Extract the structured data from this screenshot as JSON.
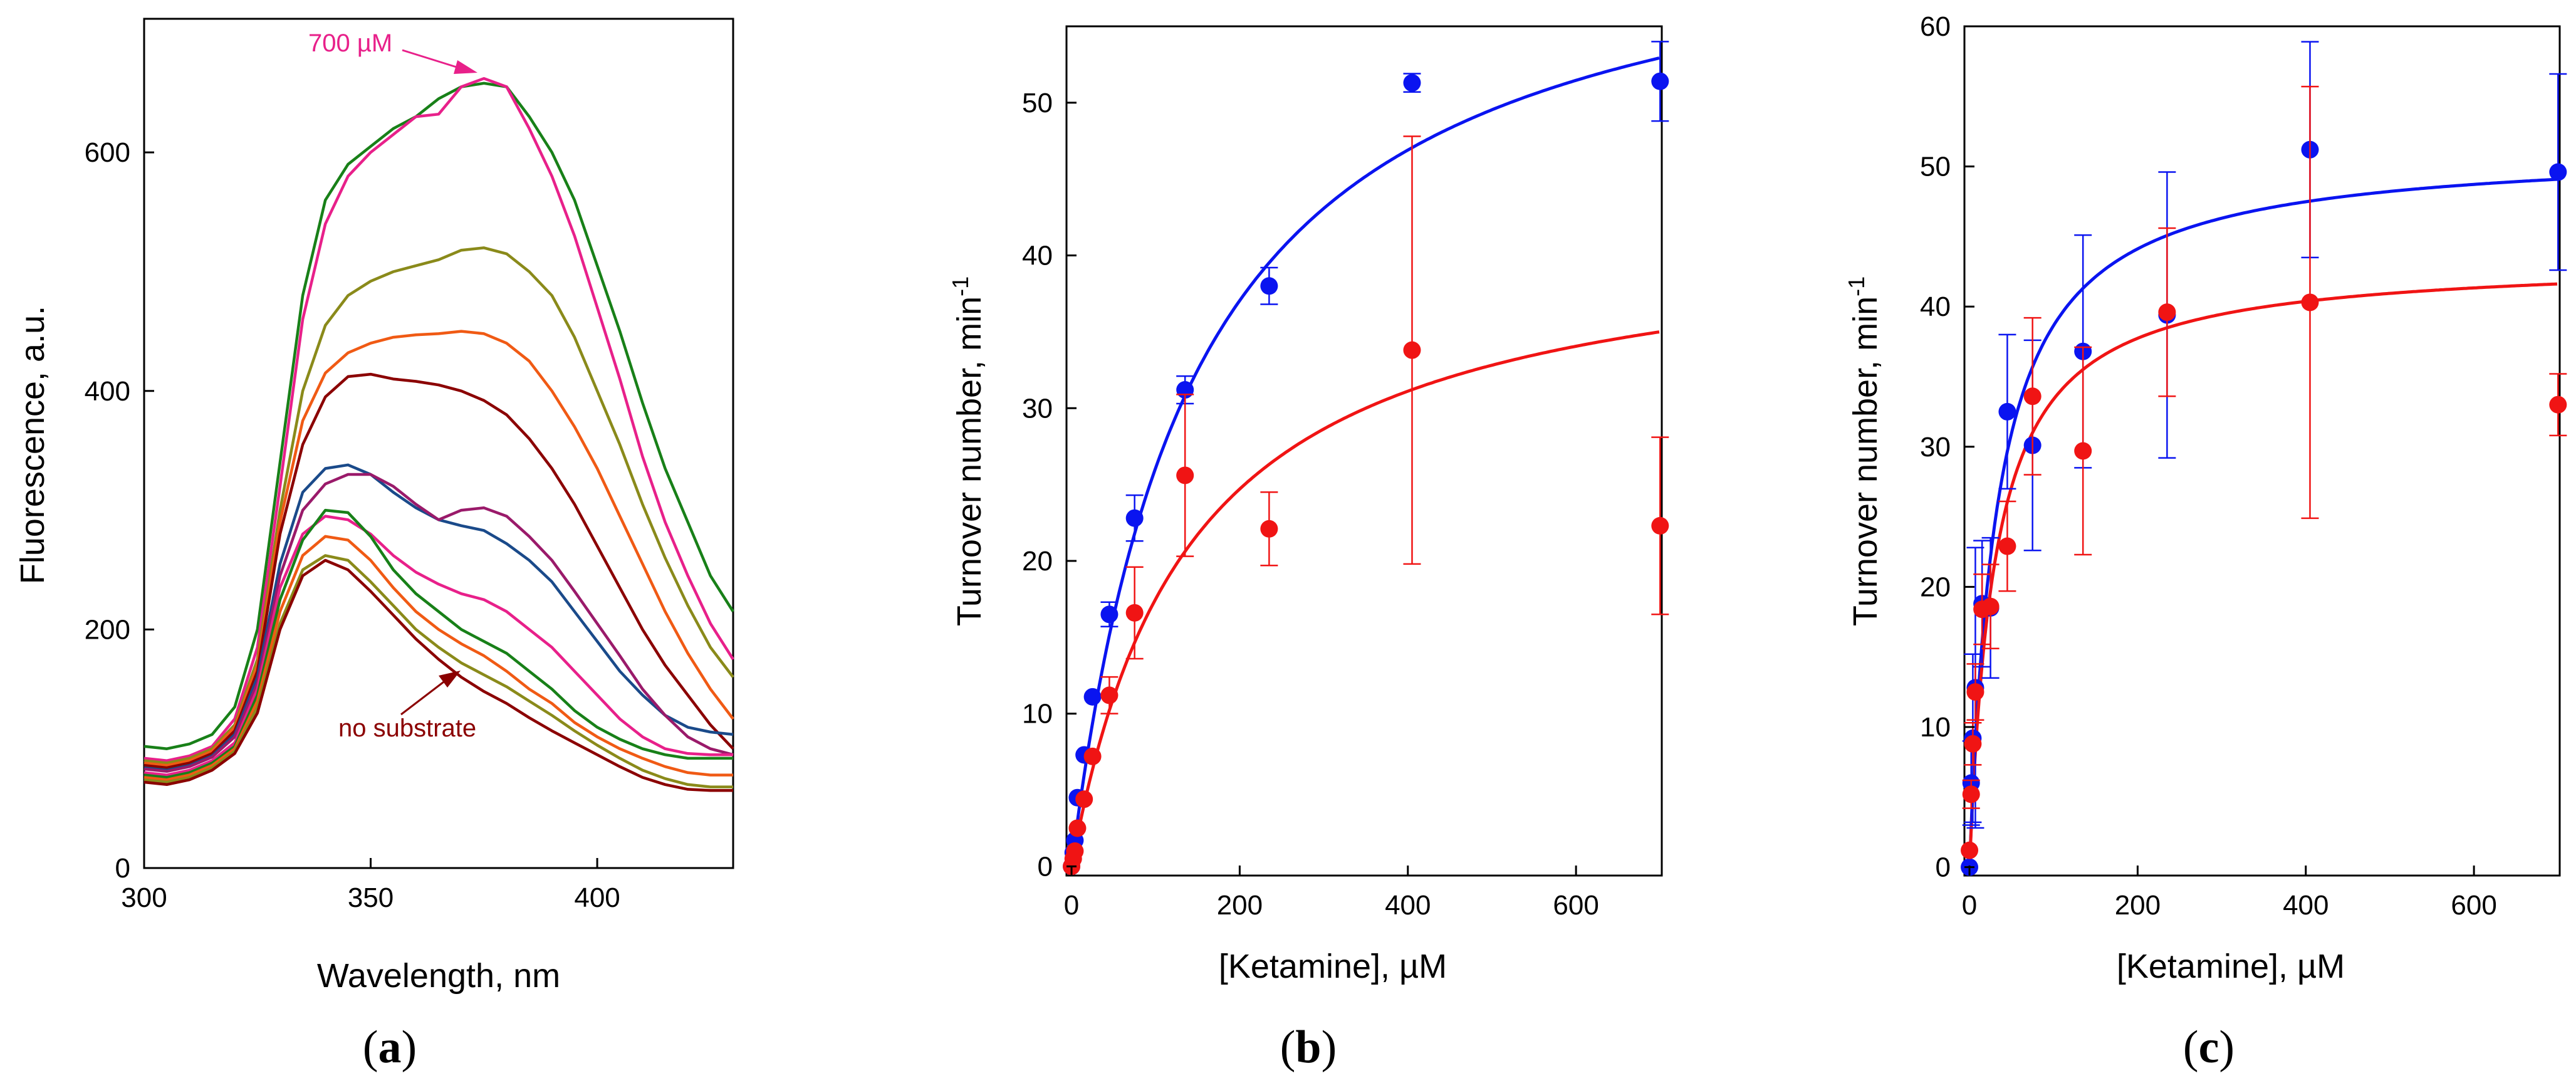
{
  "colors": {
    "blue": "#0a14f0",
    "red": "#f01414",
    "annot_pink": "#e8208a",
    "annot_dark_red": "#8b0000"
  },
  "chart_data": [
    {
      "type": "line",
      "panel": "(a)",
      "panel_letter": "a",
      "xlabel": "Wavelength, nm",
      "ylabel": "Fluorescence, a.u.",
      "xlim": [
        300,
        430
      ],
      "ylim": [
        0,
        700
      ],
      "xticks": [
        300,
        350,
        400
      ],
      "yticks": [
        0,
        200,
        400,
        600
      ],
      "annotations": [
        {
          "text": "700 µM",
          "color": "#e8208a",
          "points_to": {
            "x": 375,
            "y": 662
          }
        },
        {
          "text": "no substrate",
          "color": "#8b0000",
          "points_to": {
            "x": 367,
            "y": 165
          }
        }
      ],
      "series": [
        {
          "name": "green-1",
          "color": "#188018",
          "x": [
            300,
            305,
            310,
            315,
            320,
            325,
            330,
            335,
            340,
            345,
            350,
            355,
            360,
            365,
            370,
            375,
            380,
            385,
            390,
            395,
            400,
            405,
            410,
            415,
            420,
            425,
            430
          ],
          "y": [
            102,
            100,
            104,
            112,
            135,
            200,
            340,
            480,
            560,
            590,
            605,
            620,
            630,
            645,
            655,
            658,
            655,
            630,
            600,
            560,
            505,
            450,
            390,
            335,
            290,
            245,
            215
          ]
        },
        {
          "name": "pink-700",
          "color": "#e8208a",
          "x": [
            300,
            305,
            310,
            315,
            320,
            325,
            330,
            335,
            340,
            345,
            350,
            355,
            360,
            365,
            370,
            375,
            380,
            385,
            390,
            395,
            400,
            405,
            410,
            415,
            420,
            425,
            430
          ],
          "y": [
            92,
            90,
            94,
            102,
            125,
            185,
            320,
            460,
            540,
            580,
            600,
            615,
            630,
            632,
            655,
            662,
            655,
            620,
            580,
            530,
            470,
            410,
            345,
            290,
            245,
            205,
            175
          ]
        },
        {
          "name": "olive-1",
          "color": "#8a8a1a",
          "x": [
            300,
            305,
            310,
            315,
            320,
            325,
            330,
            335,
            340,
            345,
            350,
            355,
            360,
            365,
            370,
            375,
            380,
            385,
            390,
            395,
            400,
            405,
            410,
            415,
            420,
            425,
            430
          ],
          "y": [
            90,
            88,
            92,
            100,
            120,
            175,
            300,
            400,
            455,
            480,
            492,
            500,
            505,
            510,
            518,
            520,
            515,
            500,
            480,
            445,
            400,
            355,
            305,
            260,
            220,
            185,
            160
          ]
        },
        {
          "name": "orange-1",
          "color": "#f05a14",
          "x": [
            300,
            305,
            310,
            315,
            320,
            325,
            330,
            335,
            340,
            345,
            350,
            355,
            360,
            365,
            370,
            375,
            380,
            385,
            390,
            395,
            400,
            405,
            410,
            415,
            420,
            425,
            430
          ],
          "y": [
            88,
            86,
            90,
            98,
            118,
            170,
            290,
            375,
            415,
            432,
            440,
            445,
            447,
            448,
            450,
            448,
            440,
            425,
            400,
            370,
            335,
            295,
            255,
            215,
            180,
            150,
            125
          ]
        },
        {
          "name": "darkred-1",
          "color": "#8b0000",
          "x": [
            300,
            305,
            310,
            315,
            320,
            325,
            330,
            335,
            340,
            345,
            350,
            355,
            360,
            365,
            370,
            375,
            380,
            385,
            390,
            395,
            400,
            405,
            410,
            415,
            420,
            425,
            430
          ],
          "y": [
            86,
            84,
            88,
            96,
            115,
            165,
            280,
            355,
            395,
            412,
            414,
            410,
            408,
            405,
            400,
            392,
            380,
            360,
            335,
            305,
            270,
            235,
            200,
            170,
            145,
            120,
            100
          ]
        },
        {
          "name": "blue-1",
          "color": "#1a4a8a",
          "x": [
            300,
            305,
            310,
            315,
            320,
            325,
            330,
            335,
            340,
            345,
            350,
            355,
            360,
            365,
            370,
            375,
            380,
            385,
            390,
            395,
            400,
            405,
            410,
            415,
            420,
            425,
            430
          ],
          "y": [
            84,
            82,
            86,
            94,
            112,
            160,
            255,
            315,
            335,
            338,
            330,
            315,
            302,
            292,
            287,
            283,
            272,
            258,
            240,
            215,
            190,
            165,
            145,
            128,
            118,
            114,
            112
          ]
        },
        {
          "name": "purple-1",
          "color": "#9a1a6a",
          "x": [
            300,
            305,
            310,
            315,
            320,
            325,
            330,
            335,
            340,
            345,
            350,
            355,
            360,
            365,
            370,
            375,
            380,
            385,
            390,
            395,
            400,
            405,
            410,
            415,
            420,
            425,
            430
          ],
          "y": [
            83,
            81,
            85,
            93,
            110,
            155,
            245,
            300,
            322,
            330,
            330,
            320,
            305,
            292,
            300,
            302,
            295,
            278,
            258,
            232,
            205,
            178,
            150,
            128,
            110,
            100,
            95
          ]
        },
        {
          "name": "pink-2",
          "color": "#e8208a",
          "x": [
            300,
            305,
            310,
            315,
            320,
            325,
            330,
            335,
            340,
            345,
            350,
            355,
            360,
            365,
            370,
            375,
            380,
            385,
            390,
            395,
            400,
            405,
            410,
            415,
            420,
            425,
            430
          ],
          "y": [
            80,
            78,
            82,
            90,
            105,
            150,
            235,
            280,
            295,
            292,
            280,
            262,
            248,
            238,
            230,
            225,
            215,
            200,
            185,
            165,
            145,
            125,
            110,
            100,
            96,
            95,
            95
          ]
        },
        {
          "name": "green-2",
          "color": "#188018",
          "x": [
            300,
            305,
            310,
            315,
            320,
            325,
            330,
            335,
            340,
            345,
            350,
            355,
            360,
            365,
            370,
            375,
            380,
            385,
            390,
            395,
            400,
            405,
            410,
            415,
            420,
            425,
            430
          ],
          "y": [
            78,
            76,
            80,
            88,
            102,
            145,
            225,
            275,
            300,
            298,
            278,
            250,
            230,
            215,
            200,
            190,
            180,
            165,
            150,
            132,
            118,
            108,
            100,
            95,
            92,
            92,
            92
          ]
        },
        {
          "name": "orange-2",
          "color": "#f05a14",
          "x": [
            300,
            305,
            310,
            315,
            320,
            325,
            330,
            335,
            340,
            345,
            350,
            355,
            360,
            365,
            370,
            375,
            380,
            385,
            390,
            395,
            400,
            405,
            410,
            415,
            420,
            425,
            430
          ],
          "y": [
            76,
            74,
            78,
            86,
            100,
            140,
            215,
            262,
            278,
            275,
            258,
            235,
            215,
            200,
            188,
            178,
            165,
            150,
            138,
            122,
            110,
            100,
            92,
            85,
            80,
            78,
            78
          ]
        },
        {
          "name": "olive-2",
          "color": "#8a8a1a",
          "x": [
            300,
            305,
            310,
            315,
            320,
            325,
            330,
            335,
            340,
            345,
            350,
            355,
            360,
            365,
            370,
            375,
            380,
            385,
            390,
            395,
            400,
            405,
            410,
            415,
            420,
            425,
            430
          ],
          "y": [
            74,
            72,
            76,
            84,
            98,
            135,
            205,
            250,
            262,
            258,
            240,
            220,
            200,
            185,
            172,
            162,
            152,
            140,
            128,
            115,
            103,
            92,
            82,
            75,
            70,
            68,
            68
          ]
        },
        {
          "name": "darkred-no-substrate",
          "color": "#8b0000",
          "x": [
            300,
            305,
            310,
            315,
            320,
            325,
            330,
            335,
            340,
            345,
            350,
            355,
            360,
            365,
            370,
            375,
            380,
            385,
            390,
            395,
            400,
            405,
            410,
            415,
            420,
            425,
            430
          ],
          "y": [
            72,
            70,
            74,
            82,
            96,
            130,
            200,
            245,
            258,
            250,
            232,
            212,
            192,
            175,
            160,
            148,
            138,
            126,
            115,
            105,
            95,
            85,
            76,
            70,
            66,
            65,
            65
          ]
        }
      ]
    },
    {
      "type": "scatter",
      "panel": "(b)",
      "panel_letter": "b",
      "xlabel": "[Ketamine], µM",
      "ylabel": "Turnover number, min-1",
      "ylabel_main": "Turnover number, min",
      "ylabel_sup": "-1",
      "xlim": [
        0,
        700
      ],
      "ylim": [
        0,
        55
      ],
      "xticks": [
        0,
        200,
        400,
        600
      ],
      "yticks": [
        0,
        10,
        20,
        30,
        40,
        50
      ],
      "series": [
        {
          "name": "blue",
          "color": "#0a14f0",
          "x": [
            0,
            2,
            4,
            7,
            15,
            25,
            45,
            75,
            135,
            235,
            405,
            700
          ],
          "y": [
            0,
            0.9,
            1.7,
            4.5,
            7.3,
            11.1,
            16.5,
            22.8,
            31.2,
            38.0,
            51.3,
            51.4
          ],
          "err": [
            0,
            0,
            0,
            0,
            0,
            0,
            0.8,
            1.5,
            0.9,
            1.2,
            0.6,
            2.6
          ]
        },
        {
          "name": "red",
          "color": "#f01414",
          "x": [
            0,
            2,
            4,
            7,
            15,
            25,
            45,
            75,
            135,
            235,
            405,
            700
          ],
          "y": [
            0,
            0.5,
            1.0,
            2.5,
            4.4,
            7.2,
            11.2,
            16.6,
            25.6,
            22.1,
            33.8,
            22.3
          ],
          "err": [
            0,
            0,
            0,
            0,
            0,
            0,
            1.2,
            3.0,
            5.3,
            2.4,
            14.0,
            5.8
          ]
        }
      ],
      "fits": [
        {
          "name": "blue-fit",
          "color": "#0a14f0",
          "vmax": 63.9,
          "km": 145
        },
        {
          "name": "red-fit",
          "color": "#f01414",
          "vmax": 42.0,
          "km": 140
        }
      ]
    },
    {
      "type": "scatter",
      "panel": "(c)",
      "panel_letter": "c",
      "xlabel": "[Ketamine], µM",
      "ylabel": "Turnover number, min-1",
      "ylabel_main": "Turnover number, min",
      "ylabel_sup": "-1",
      "xlim": [
        0,
        700
      ],
      "ylim": [
        0,
        60
      ],
      "xticks": [
        0,
        200,
        400,
        600
      ],
      "yticks": [
        0,
        10,
        20,
        30,
        40,
        50,
        60
      ],
      "series": [
        {
          "name": "blue",
          "color": "#0a14f0",
          "x": [
            0,
            2,
            4,
            7,
            15,
            25,
            45,
            75,
            135,
            235,
            405,
            700
          ],
          "y": [
            0,
            6.0,
            9.2,
            12.8,
            18.8,
            18.5,
            32.5,
            30.1,
            36.8,
            39.4,
            51.2,
            49.6
          ],
          "err": [
            0,
            3.0,
            6.0,
            10.0,
            4.5,
            5.0,
            5.5,
            7.5,
            8.3,
            10.2,
            7.7,
            7.0
          ]
        },
        {
          "name": "red",
          "color": "#f01414",
          "x": [
            0,
            2,
            4,
            7,
            15,
            25,
            45,
            75,
            135,
            235,
            405,
            700
          ],
          "y": [
            1.2,
            5.2,
            8.8,
            12.5,
            18.4,
            18.6,
            22.9,
            33.6,
            29.7,
            39.6,
            40.3,
            33.0
          ],
          "err": [
            0,
            1.0,
            1.5,
            2.0,
            2.5,
            3.0,
            3.2,
            5.6,
            7.4,
            6.0,
            15.4,
            2.2
          ]
        }
      ],
      "fits": [
        {
          "name": "blue-fit",
          "color": "#0a14f0",
          "vmax": 51.4,
          "km": 33
        },
        {
          "name": "red-fit",
          "color": "#f01414",
          "vmax": 43.4,
          "km": 30
        }
      ]
    }
  ]
}
